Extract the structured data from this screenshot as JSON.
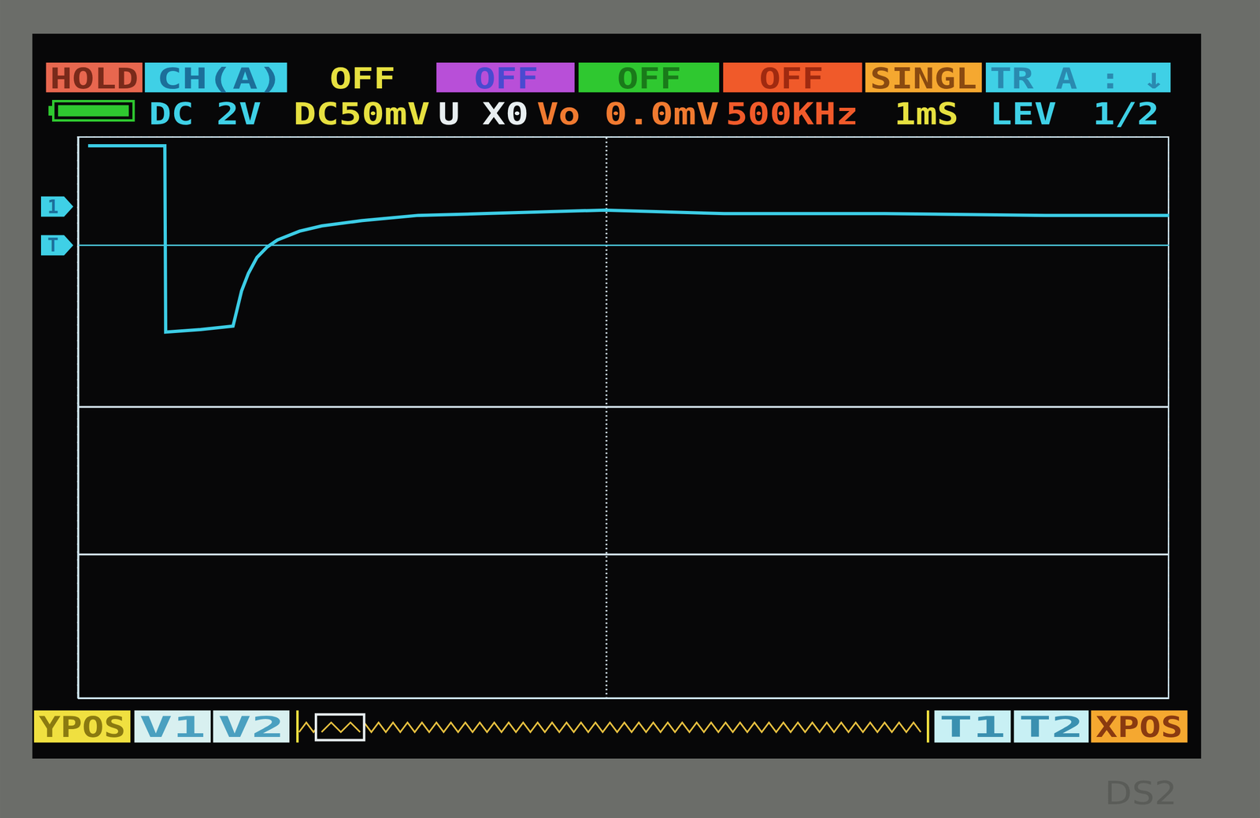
{
  "chart_data": {
    "type": "line",
    "color": "#3ccde6",
    "grid": true,
    "tick_labels": false,
    "xlim": [
      0,
      12.8
    ],
    "xticks": [
      0,
      1,
      2,
      3,
      4,
      5,
      6,
      7,
      8,
      9,
      10,
      11,
      12
    ],
    "ylim": [
      -14,
      2
    ],
    "yticks": [
      -14,
      -12,
      -10,
      -8,
      -6,
      -4,
      -2,
      0,
      2
    ],
    "x": [
      0.12,
      1.02,
      1.03,
      1.44,
      1.82,
      1.92,
      2.0,
      2.1,
      2.22,
      2.34,
      2.6,
      2.86,
      3.33,
      3.99,
      4.75,
      6.18,
      7.58,
      9.46,
      11.35,
      12.8
    ],
    "values": [
      1.73,
      1.73,
      -3.57,
      -3.5,
      -3.4,
      -2.4,
      -1.9,
      -1.45,
      -1.15,
      -0.95,
      -0.7,
      -0.55,
      -0.4,
      -0.25,
      -0.2,
      -0.1,
      -0.2,
      -0.2,
      -0.25,
      -0.25
    ],
    "channel": {
      "label": "1",
      "value": 0
    },
    "trigger": {
      "label": "T",
      "value": -1.1
    },
    "cursors": {
      "y": [
        -5.7,
        -9.9
      ],
      "x": [
        6.2
      ]
    }
  },
  "status_bar": {
    "row1": [
      "HOLD",
      "CH(A)",
      "OFF",
      "OFF",
      "OFF",
      "OFF",
      "SINGL",
      "TR A : ↓"
    ],
    "row2": [
      "DC 2V",
      "DC50mV",
      "U",
      "X0",
      "Vo",
      "0.0mV",
      "500KHz",
      "1mS",
      "LEV",
      "1/2"
    ]
  },
  "bottom_bar": [
    "YPOS",
    "V1",
    "V2",
    "T1",
    "T2",
    "XPOS"
  ],
  "device_label": "DS2"
}
